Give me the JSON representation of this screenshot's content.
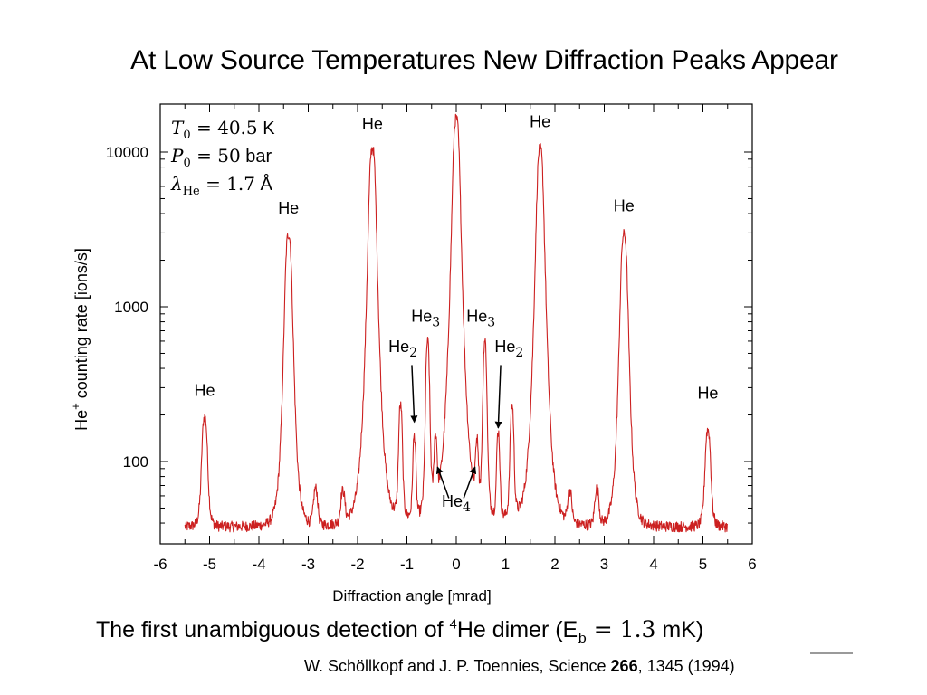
{
  "slide": {
    "title": "At Low Source Temperatures New Diffraction Peaks Appear"
  },
  "caption": {
    "prefix": "The first unambiguous detection of ",
    "isotope_sup": "4",
    "species": "He dimer (E",
    "sub": "b",
    "eq": " = 1.3",
    "suffix": " mK)"
  },
  "citation": {
    "prefix": "W. Schöllkopf and J. P. Toennies, Science ",
    "volume": "266",
    "suffix": ", 1345 (1994)"
  },
  "chart_data": {
    "type": "line",
    "ylabel": "He+ counting rate [ions/s]",
    "xlabel": "Diffraction angle [mrad]",
    "yscale": "log",
    "xlim": [
      -6,
      6
    ],
    "ylim": [
      33,
      18000
    ],
    "xticks": [
      "-6",
      "-5",
      "-4",
      "-3",
      "-2",
      "-1",
      "0",
      "1",
      "2",
      "3",
      "4",
      "5",
      "6"
    ],
    "yticks": [
      {
        "value": 100,
        "label": "100"
      },
      {
        "value": 1000,
        "label": "1000"
      },
      {
        "value": 10000,
        "label": "10000"
      }
    ],
    "line_color": "#cc2020",
    "conditions": [
      {
        "lhs": "T",
        "sub": "0",
        "rhs": " = 40.5",
        "unit": " K"
      },
      {
        "lhs": "P",
        "sub": "0",
        "rhs": " = 50",
        "unit": " bar"
      },
      {
        "lhs": "λ",
        "sub": "He",
        "rhs": " = 1.7",
        "unit": " Å"
      }
    ],
    "baseline": {
      "x_start": -5.5,
      "x_end": 5.5,
      "y_start": 38,
      "y_end": 38
    },
    "peaks": [
      {
        "x": -5.1,
        "y": 195,
        "w": 0.06
      },
      {
        "x": -3.4,
        "y": 2950,
        "w": 0.07
      },
      {
        "x": -2.85,
        "y": 66,
        "w": 0.05
      },
      {
        "x": -2.3,
        "y": 62,
        "w": 0.05
      },
      {
        "x": -1.7,
        "y": 10600,
        "w": 0.07
      },
      {
        "x": -1.13,
        "y": 225,
        "w": 0.04
      },
      {
        "x": -0.85,
        "y": 140,
        "w": 0.035
      },
      {
        "x": -0.58,
        "y": 590,
        "w": 0.04
      },
      {
        "x": -0.42,
        "y": 130,
        "w": 0.035
      },
      {
        "x": 0.0,
        "y": 16500,
        "w": 0.07
      },
      {
        "x": 0.42,
        "y": 120,
        "w": 0.035
      },
      {
        "x": 0.58,
        "y": 590,
        "w": 0.04
      },
      {
        "x": 0.85,
        "y": 150,
        "w": 0.035
      },
      {
        "x": 1.13,
        "y": 225,
        "w": 0.04
      },
      {
        "x": 1.7,
        "y": 10600,
        "w": 0.07
      },
      {
        "x": 2.3,
        "y": 62,
        "w": 0.05
      },
      {
        "x": 2.85,
        "y": 66,
        "w": 0.05
      },
      {
        "x": 3.4,
        "y": 2950,
        "w": 0.07
      },
      {
        "x": 5.1,
        "y": 160,
        "w": 0.06
      }
    ],
    "annotations": [
      {
        "text": "He",
        "sub": "",
        "x": -5.1,
        "y": 265
      },
      {
        "text": "He",
        "sub": "",
        "x": -3.4,
        "y": 4000
      },
      {
        "text": "He",
        "sub": "",
        "x": -1.7,
        "y": 14000
      },
      {
        "text": "He",
        "sub": "",
        "x": 1.7,
        "y": 14500
      },
      {
        "text": "He",
        "sub": "",
        "x": 3.4,
        "y": 4150
      },
      {
        "text": "He",
        "sub": "",
        "x": 5.1,
        "y": 255
      },
      {
        "text": "He",
        "sub": "3",
        "x": -0.62,
        "y": 800
      },
      {
        "text": "He",
        "sub": "3",
        "x": 0.5,
        "y": 800
      },
      {
        "text": "He",
        "sub": "2",
        "x": -1.08,
        "y": 510
      },
      {
        "text": "He",
        "sub": "2",
        "x": 1.07,
        "y": 510
      },
      {
        "text": "He",
        "sub": "4",
        "x": 0.0,
        "y": 51
      }
    ]
  }
}
